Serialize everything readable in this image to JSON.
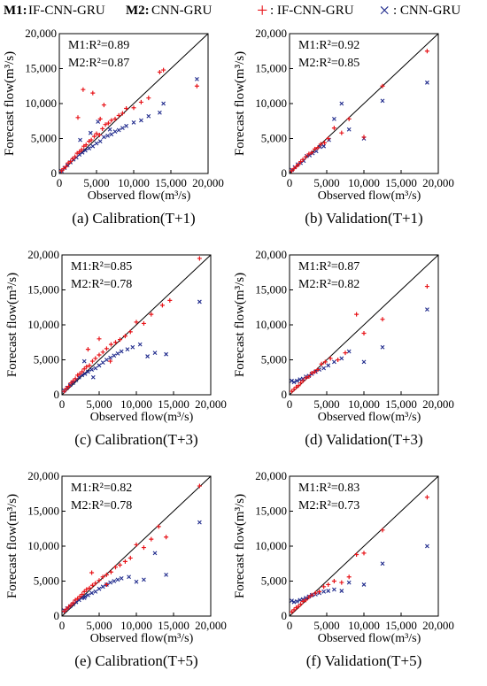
{
  "legend": {
    "m1_key": "M1:",
    "m1_text": " IF-CNN-GRU",
    "m2_key": "M2:",
    "m2_text": " CNN-GRU",
    "plus_symbol": "+",
    "plus_text": ": IF-CNN-GRU",
    "x_symbol": "×",
    "x_text": ": CNN-GRU",
    "colors": {
      "IF-CNN-GRU": "#e8161b",
      "CNN-GRU": "#1f2a8c",
      "reference_line": "#000000"
    }
  },
  "chart_data": [
    {
      "type": "scatter",
      "caption": "(a) Calibration(T+1)",
      "xlabel": "Observed flow(m³/s)",
      "ylabel": "Forecast flow(m³/s)",
      "xlim": [
        0,
        20000
      ],
      "ylim": [
        0,
        20000
      ],
      "xticks": [
        "0",
        "5,000",
        "10,000",
        "15,000",
        "20,000"
      ],
      "yticks": [
        "0",
        "5,000",
        "10,000",
        "15,000",
        "20,000"
      ],
      "reference_line": "y = x",
      "annotations": [
        "M1:R²=0.89",
        "M2:R²=0.87"
      ],
      "series": [
        {
          "name": "IF-CNN-GRU",
          "marker": "+",
          "color": "#e8161b",
          "x": [
            300,
            600,
            900,
            1200,
            1500,
            1800,
            2100,
            2400,
            2700,
            3000,
            3300,
            3600,
            4000,
            4300,
            4700,
            5000,
            5400,
            5800,
            6200,
            6600,
            7000,
            7500,
            8000,
            8500,
            9000,
            10000,
            11000,
            12000,
            13500,
            14000,
            18500,
            3200,
            4500,
            5500,
            2500,
            6000
          ],
          "y": [
            400,
            700,
            1000,
            1500,
            1700,
            2100,
            2400,
            2900,
            3100,
            3400,
            3900,
            4100,
            4600,
            4800,
            5300,
            5700,
            5500,
            6400,
            7000,
            7200,
            7600,
            7800,
            8300,
            8600,
            9300,
            9400,
            10200,
            10800,
            14500,
            14800,
            12500,
            12000,
            11500,
            7800,
            8000,
            9800
          ]
        },
        {
          "name": "CNN-GRU",
          "marker": "x",
          "color": "#1f2a8c",
          "x": [
            300,
            700,
            1100,
            1500,
            1900,
            2300,
            2700,
            3100,
            3500,
            4000,
            4500,
            5000,
            5500,
            6000,
            6500,
            7000,
            7500,
            8000,
            9000,
            10000,
            11000,
            12000,
            13500,
            14000,
            18500,
            2800,
            4200,
            5200,
            6800,
            8500
          ],
          "y": [
            350,
            800,
            1200,
            1600,
            2000,
            2300,
            2700,
            3000,
            3300,
            3600,
            3900,
            4300,
            4600,
            5200,
            5400,
            5600,
            6000,
            6200,
            6800,
            7300,
            7600,
            8200,
            8700,
            10000,
            13500,
            4800,
            5800,
            7400,
            6300,
            6500
          ]
        }
      ]
    },
    {
      "type": "scatter",
      "caption": "(b) Validation(T+1)",
      "xlabel": "Observed flow(m³/s)",
      "ylabel": "Forecast flow(m³/s)",
      "xlim": [
        0,
        20000
      ],
      "ylim": [
        0,
        20000
      ],
      "xticks": [
        "0",
        "5,000",
        "10,000",
        "15,000",
        "20,000"
      ],
      "yticks": [
        "0",
        "5,000",
        "10,000",
        "15,000",
        "20,000"
      ],
      "reference_line": "y = x",
      "annotations": [
        "M1:R²=0.92",
        "M2:R²=0.85"
      ],
      "series": [
        {
          "name": "IF-CNN-GRU",
          "marker": "+",
          "color": "#e8161b",
          "x": [
            300,
            600,
            900,
            1200,
            1500,
            1800,
            2200,
            2600,
            3000,
            3400,
            3800,
            4200,
            4700,
            5200,
            6000,
            7000,
            8000,
            10000,
            12500,
            18500
          ],
          "y": [
            400,
            700,
            1000,
            1300,
            1700,
            2000,
            2400,
            2800,
            3000,
            3500,
            3700,
            4200,
            4400,
            5000,
            6500,
            5800,
            7800,
            5200,
            12500,
            17500
          ]
        },
        {
          "name": "CNN-GRU",
          "marker": "x",
          "color": "#1f2a8c",
          "x": [
            300,
            700,
            1100,
            1500,
            1900,
            2300,
            2700,
            3100,
            3600,
            4100,
            4600,
            5300,
            6000,
            7000,
            8000,
            10000,
            12500,
            18500
          ],
          "y": [
            500,
            900,
            1300,
            1500,
            1800,
            2500,
            2600,
            2900,
            3200,
            3800,
            3900,
            4800,
            7800,
            10000,
            6300,
            5000,
            10400,
            13000
          ]
        }
      ]
    },
    {
      "type": "scatter",
      "caption": "(c) Calibration(T+3)",
      "xlabel": "Observed flow(m³/s)",
      "ylabel": "Forecast flow(m³/s)",
      "xlim": [
        0,
        20000
      ],
      "ylim": [
        0,
        20000
      ],
      "xticks": [
        "0",
        "5,000",
        "10,000",
        "15,000",
        "20,000"
      ],
      "yticks": [
        "0",
        "5,000",
        "10,000",
        "15,000",
        "20,000"
      ],
      "reference_line": "y = x",
      "annotations": [
        "M1:R²=0.85",
        "M2:R²=0.78"
      ],
      "series": [
        {
          "name": "IF-CNN-GRU",
          "marker": "+",
          "color": "#e8161b",
          "x": [
            300,
            600,
            900,
            1200,
            1500,
            1800,
            2100,
            2400,
            2700,
            3000,
            3300,
            3700,
            4100,
            4500,
            5000,
            5500,
            6000,
            6600,
            7200,
            7800,
            8500,
            9200,
            10000,
            11000,
            12000,
            13500,
            14500,
            18500,
            3500,
            5000,
            6500
          ],
          "y": [
            500,
            900,
            1200,
            1700,
            2000,
            2300,
            2800,
            3000,
            3300,
            3700,
            4000,
            4200,
            4800,
            5200,
            5700,
            6100,
            6600,
            7200,
            7500,
            7900,
            8400,
            9000,
            10400,
            10200,
            11500,
            12800,
            13500,
            19500,
            6500,
            8000,
            4800
          ]
        },
        {
          "name": "CNN-GRU",
          "marker": "x",
          "color": "#1f2a8c",
          "x": [
            300,
            700,
            1100,
            1500,
            1900,
            2300,
            2700,
            3100,
            3500,
            4000,
            4500,
            5000,
            5500,
            6000,
            6500,
            7000,
            7500,
            8000,
            8800,
            9500,
            10500,
            11500,
            12500,
            14000,
            18500,
            3000,
            4200
          ],
          "y": [
            600,
            1000,
            1400,
            1700,
            2100,
            2500,
            2800,
            3000,
            3300,
            3600,
            3800,
            4200,
            4600,
            5000,
            5300,
            5600,
            5900,
            6200,
            6500,
            6800,
            7200,
            5500,
            6000,
            5800,
            13300,
            4800,
            2500
          ]
        }
      ]
    },
    {
      "type": "scatter",
      "caption": "(d) Validation(T+3)",
      "xlabel": "Observed flow(m³/s)",
      "ylabel": "Forecast flow(m³/s)",
      "xlim": [
        0,
        20000
      ],
      "ylim": [
        0,
        20000
      ],
      "xticks": [
        "0",
        "5,000",
        "10,000",
        "15,000",
        "20,000"
      ],
      "yticks": [
        "0",
        "5,000",
        "10,000",
        "15,000",
        "20,000"
      ],
      "reference_line": "y = x",
      "annotations": [
        "M1:R²=0.87",
        "M2:R²=0.82"
      ],
      "series": [
        {
          "name": "IF-CNN-GRU",
          "marker": "+",
          "color": "#e8161b",
          "x": [
            300,
            600,
            900,
            1200,
            1500,
            1800,
            2200,
            2600,
            3000,
            3400,
            3800,
            4300,
            4800,
            5500,
            6500,
            7500,
            9000,
            10000,
            12500,
            18500
          ],
          "y": [
            500,
            800,
            1100,
            1300,
            1700,
            2000,
            2400,
            2600,
            3100,
            3300,
            3600,
            4400,
            4700,
            5200,
            5000,
            6000,
            11500,
            8800,
            10800,
            15500
          ]
        },
        {
          "name": "CNN-GRU",
          "marker": "x",
          "color": "#1f2a8c",
          "x": [
            300,
            600,
            1000,
            1400,
            1800,
            2200,
            2600,
            3000,
            3500,
            4000,
            4600,
            5200,
            6000,
            7000,
            8000,
            10000,
            12500,
            18500
          ],
          "y": [
            2000,
            1800,
            2000,
            2200,
            2300,
            2600,
            2700,
            3000,
            3300,
            3600,
            3800,
            4200,
            4700,
            5200,
            6200,
            4700,
            6800,
            12200
          ]
        }
      ]
    },
    {
      "type": "scatter",
      "caption": "(e) Calibration(T+5)",
      "xlabel": "Observed flow(m³/s)",
      "ylabel": "Forecast flow(m³/s)",
      "xlim": [
        0,
        20000
      ],
      "ylim": [
        0,
        20000
      ],
      "xticks": [
        "0",
        "5,000",
        "10,000",
        "15,000",
        "20,000"
      ],
      "yticks": [
        "0",
        "5,000",
        "10,000",
        "15,000",
        "20,000"
      ],
      "reference_line": "y = x",
      "annotations": [
        "M1:R²=0.82",
        "M2:R²=0.78"
      ],
      "series": [
        {
          "name": "IF-CNN-GRU",
          "marker": "+",
          "color": "#e8161b",
          "x": [
            300,
            600,
            900,
            1200,
            1500,
            1800,
            2100,
            2400,
            2700,
            3000,
            3300,
            3700,
            4100,
            4500,
            5000,
            5500,
            6000,
            6600,
            7200,
            7800,
            8500,
            9200,
            10000,
            11000,
            12000,
            13000,
            14000,
            18500,
            4000,
            6000
          ],
          "y": [
            700,
            1000,
            1300,
            1600,
            1900,
            2300,
            2500,
            2800,
            3100,
            3500,
            3800,
            4000,
            4400,
            4700,
            5100,
            5600,
            5900,
            6300,
            7000,
            7300,
            7800,
            8300,
            10200,
            9800,
            11000,
            12800,
            11300,
            18600,
            6200,
            4500
          ]
        },
        {
          "name": "CNN-GRU",
          "marker": "x",
          "color": "#1f2a8c",
          "x": [
            300,
            700,
            1100,
            1500,
            1900,
            2300,
            2700,
            3100,
            3500,
            4000,
            4500,
            5000,
            5500,
            6000,
            6500,
            7000,
            7500,
            8000,
            9000,
            10000,
            11000,
            12500,
            14000,
            18500,
            3000
          ],
          "y": [
            800,
            1100,
            1400,
            1700,
            2000,
            2300,
            2600,
            2800,
            3000,
            3300,
            3500,
            3900,
            4200,
            4500,
            4800,
            5000,
            5200,
            5400,
            5600,
            4900,
            5200,
            9000,
            5900,
            13400,
            2600
          ]
        }
      ]
    },
    {
      "type": "scatter",
      "caption": "(f) Validation(T+5)",
      "xlabel": "Observed flow(m³/s)",
      "ylabel": "Forecast flow(m³/s)",
      "xlim": [
        0,
        20000
      ],
      "ylim": [
        0,
        20000
      ],
      "xticks": [
        "0",
        "5,000",
        "10,000",
        "15,000",
        "20,000"
      ],
      "yticks": [
        "0",
        "5,000",
        "10,000",
        "15,000",
        "20,000"
      ],
      "reference_line": "y = x",
      "annotations": [
        "M1:R²=0.83",
        "M2:R²=0.73"
      ],
      "series": [
        {
          "name": "IF-CNN-GRU",
          "marker": "+",
          "color": "#e8161b",
          "x": [
            300,
            600,
            900,
            1200,
            1500,
            1800,
            2200,
            2600,
            3000,
            3500,
            4000,
            4600,
            5200,
            6000,
            7000,
            8000,
            9000,
            10000,
            12500,
            18500
          ],
          "y": [
            600,
            900,
            1200,
            1400,
            1700,
            2100,
            2300,
            2700,
            3000,
            3300,
            3500,
            4200,
            4500,
            5000,
            4800,
            5600,
            8800,
            9000,
            12300,
            17000
          ]
        },
        {
          "name": "CNN-GRU",
          "marker": "x",
          "color": "#1f2a8c",
          "x": [
            300,
            600,
            1000,
            1400,
            1800,
            2200,
            2600,
            3000,
            3500,
            4000,
            4600,
            5200,
            6000,
            7000,
            8000,
            10000,
            12500,
            18500
          ],
          "y": [
            2200,
            2000,
            2100,
            2300,
            2400,
            2600,
            2800,
            3000,
            3100,
            3300,
            3500,
            3600,
            3800,
            3600,
            4800,
            4500,
            7500,
            10000
          ]
        }
      ]
    }
  ]
}
